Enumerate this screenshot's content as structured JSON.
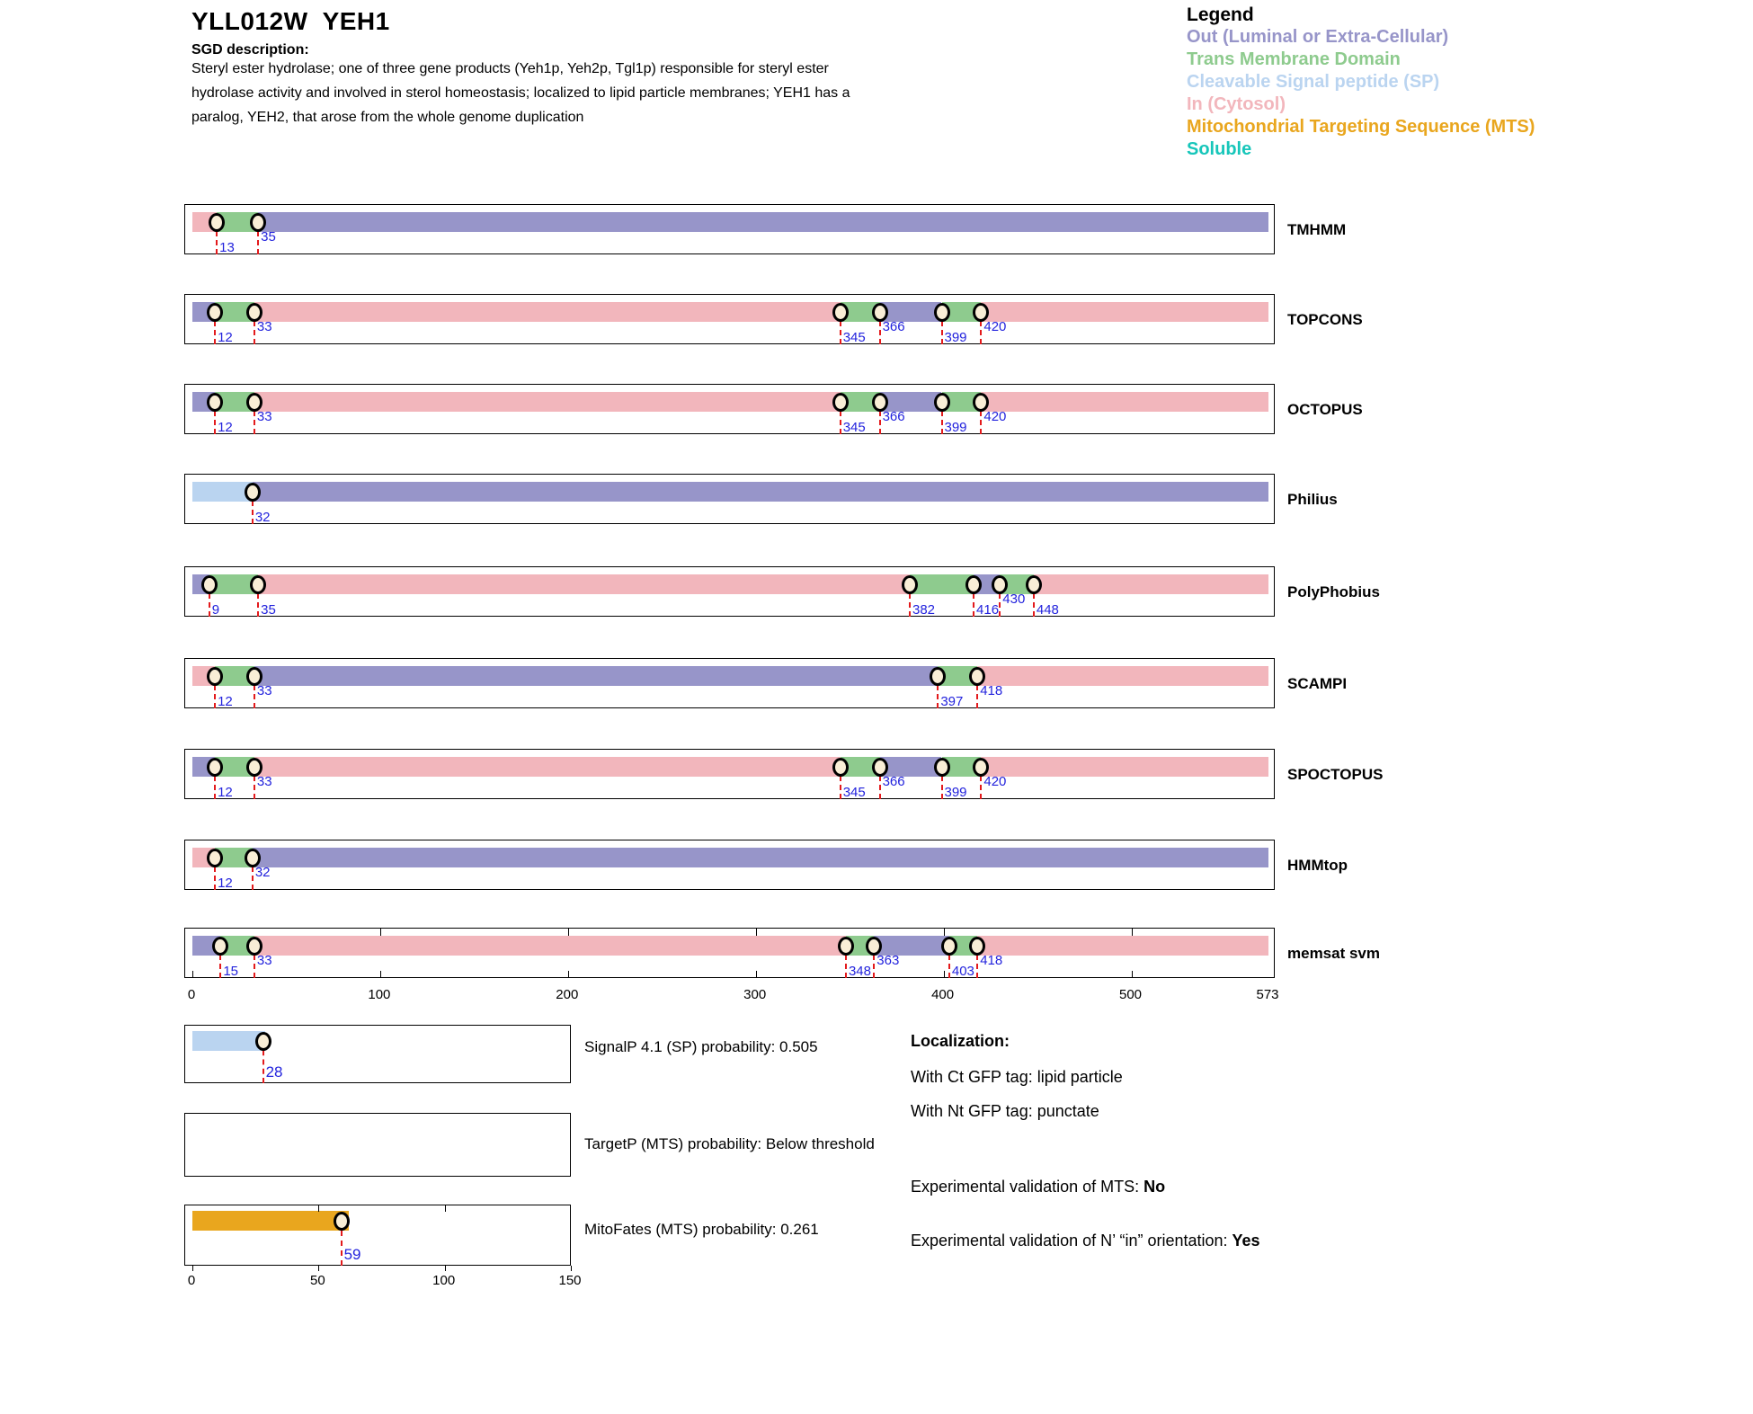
{
  "header": {
    "title": "YLL012W  YEH1",
    "sgd_label": "SGD description:",
    "description": "Steryl ester hydrolase; one of three gene products (Yeh1p, Yeh2p, Tgl1p) responsible for steryl ester hydrolase activity and involved in sterol homeostasis; localized to lipid particle membranes; YEH1 has a paralog, YEH2, that arose from the whole genome duplication"
  },
  "legend": {
    "title": "Legend",
    "items": [
      {
        "label": "Out (Luminal or Extra-Cellular)",
        "type": "out",
        "color": "#9795c9"
      },
      {
        "label": "Trans Membrane Domain",
        "type": "tm",
        "color": "#8ecb8e"
      },
      {
        "label": "Cleavable Signal peptide (SP)",
        "type": "sp",
        "color": "#bad4f0"
      },
      {
        "label": "In (Cytosol)",
        "type": "in",
        "color": "#f2b6bc"
      },
      {
        "label": "Mitochondrial Targeting Sequence (MTS)",
        "type": "mts",
        "color": "#e9a61e"
      },
      {
        "label": "Soluble",
        "type": "soluble",
        "color": "#17c6ba"
      }
    ]
  },
  "colors": {
    "out": "#9795c9",
    "tm": "#8ecb8e",
    "sp": "#bad4f0",
    "in": "#f2b6bc",
    "mts": "#e9a61e",
    "soluble": "#17c6ba",
    "marker_fill": "#f9eed6",
    "marker_line": "#e31a1c",
    "value_label": "#2323dd"
  },
  "chart_data": {
    "type": "bar",
    "subtype": "protein-topology-interval-tracks",
    "title": "Topology predictions for YLL012W YEH1",
    "protein_length": 573,
    "axis": {
      "ticks": [
        0,
        100,
        200,
        300,
        400,
        500,
        573
      ]
    },
    "tracks": [
      {
        "name": "TMHMM",
        "segments": [
          {
            "start": 0,
            "end": 13,
            "type": "in"
          },
          {
            "start": 13,
            "end": 35,
            "type": "tm"
          },
          {
            "start": 35,
            "end": 573,
            "type": "out"
          }
        ],
        "markers": [
          {
            "pos": 13,
            "row": "low"
          },
          {
            "pos": 35,
            "row": "high"
          }
        ],
        "ruler": false
      },
      {
        "name": "TOPCONS",
        "segments": [
          {
            "start": 0,
            "end": 12,
            "type": "out"
          },
          {
            "start": 12,
            "end": 33,
            "type": "tm"
          },
          {
            "start": 33,
            "end": 345,
            "type": "in"
          },
          {
            "start": 345,
            "end": 366,
            "type": "tm"
          },
          {
            "start": 366,
            "end": 399,
            "type": "out"
          },
          {
            "start": 399,
            "end": 420,
            "type": "tm"
          },
          {
            "start": 420,
            "end": 573,
            "type": "in"
          }
        ],
        "markers": [
          {
            "pos": 12,
            "row": "low"
          },
          {
            "pos": 33,
            "row": "high"
          },
          {
            "pos": 345,
            "row": "low"
          },
          {
            "pos": 366,
            "row": "high"
          },
          {
            "pos": 399,
            "row": "low"
          },
          {
            "pos": 420,
            "row": "high"
          }
        ],
        "ruler": false
      },
      {
        "name": "OCTOPUS",
        "segments": [
          {
            "start": 0,
            "end": 12,
            "type": "out"
          },
          {
            "start": 12,
            "end": 33,
            "type": "tm"
          },
          {
            "start": 33,
            "end": 345,
            "type": "in"
          },
          {
            "start": 345,
            "end": 366,
            "type": "tm"
          },
          {
            "start": 366,
            "end": 399,
            "type": "out"
          },
          {
            "start": 399,
            "end": 420,
            "type": "tm"
          },
          {
            "start": 420,
            "end": 573,
            "type": "in"
          }
        ],
        "markers": [
          {
            "pos": 12,
            "row": "low"
          },
          {
            "pos": 33,
            "row": "high"
          },
          {
            "pos": 345,
            "row": "low"
          },
          {
            "pos": 366,
            "row": "high"
          },
          {
            "pos": 399,
            "row": "low"
          },
          {
            "pos": 420,
            "row": "high"
          }
        ],
        "ruler": false
      },
      {
        "name": "Philius",
        "segments": [
          {
            "start": 0,
            "end": 32,
            "type": "sp"
          },
          {
            "start": 32,
            "end": 573,
            "type": "out"
          }
        ],
        "markers": [
          {
            "pos": 32,
            "row": "low"
          }
        ],
        "ruler": false
      },
      {
        "name": "PolyPhobius",
        "segments": [
          {
            "start": 0,
            "end": 9,
            "type": "out"
          },
          {
            "start": 9,
            "end": 35,
            "type": "tm"
          },
          {
            "start": 35,
            "end": 382,
            "type": "in"
          },
          {
            "start": 382,
            "end": 416,
            "type": "tm"
          },
          {
            "start": 416,
            "end": 430,
            "type": "out"
          },
          {
            "start": 430,
            "end": 448,
            "type": "tm"
          },
          {
            "start": 448,
            "end": 573,
            "type": "in"
          }
        ],
        "markers": [
          {
            "pos": 9,
            "row": "low"
          },
          {
            "pos": 35,
            "row": "low"
          },
          {
            "pos": 382,
            "row": "low"
          },
          {
            "pos": 416,
            "row": "low"
          },
          {
            "pos": 430,
            "row": "high"
          },
          {
            "pos": 448,
            "row": "low"
          }
        ],
        "ruler": false
      },
      {
        "name": "SCAMPI",
        "segments": [
          {
            "start": 0,
            "end": 12,
            "type": "in"
          },
          {
            "start": 12,
            "end": 33,
            "type": "tm"
          },
          {
            "start": 33,
            "end": 397,
            "type": "out"
          },
          {
            "start": 397,
            "end": 418,
            "type": "tm"
          },
          {
            "start": 418,
            "end": 573,
            "type": "in"
          }
        ],
        "markers": [
          {
            "pos": 12,
            "row": "low"
          },
          {
            "pos": 33,
            "row": "high"
          },
          {
            "pos": 397,
            "row": "low"
          },
          {
            "pos": 418,
            "row": "high"
          }
        ],
        "ruler": false
      },
      {
        "name": "SPOCTOPUS",
        "segments": [
          {
            "start": 0,
            "end": 12,
            "type": "out"
          },
          {
            "start": 12,
            "end": 33,
            "type": "tm"
          },
          {
            "start": 33,
            "end": 345,
            "type": "in"
          },
          {
            "start": 345,
            "end": 366,
            "type": "tm"
          },
          {
            "start": 366,
            "end": 399,
            "type": "out"
          },
          {
            "start": 399,
            "end": 420,
            "type": "tm"
          },
          {
            "start": 420,
            "end": 573,
            "type": "in"
          }
        ],
        "markers": [
          {
            "pos": 12,
            "row": "low"
          },
          {
            "pos": 33,
            "row": "high"
          },
          {
            "pos": 345,
            "row": "low"
          },
          {
            "pos": 366,
            "row": "high"
          },
          {
            "pos": 399,
            "row": "low"
          },
          {
            "pos": 420,
            "row": "high"
          }
        ],
        "ruler": false
      },
      {
        "name": "HMMtop",
        "segments": [
          {
            "start": 0,
            "end": 12,
            "type": "in"
          },
          {
            "start": 12,
            "end": 32,
            "type": "tm"
          },
          {
            "start": 32,
            "end": 573,
            "type": "out"
          }
        ],
        "markers": [
          {
            "pos": 12,
            "row": "low"
          },
          {
            "pos": 32,
            "row": "high"
          }
        ],
        "ruler": false
      },
      {
        "name": "memsat svm",
        "segments": [
          {
            "start": 0,
            "end": 15,
            "type": "out"
          },
          {
            "start": 15,
            "end": 33,
            "type": "tm"
          },
          {
            "start": 33,
            "end": 348,
            "type": "in"
          },
          {
            "start": 348,
            "end": 363,
            "type": "tm"
          },
          {
            "start": 363,
            "end": 403,
            "type": "out"
          },
          {
            "start": 403,
            "end": 418,
            "type": "tm"
          },
          {
            "start": 418,
            "end": 573,
            "type": "in"
          }
        ],
        "markers": [
          {
            "pos": 15,
            "row": "low"
          },
          {
            "pos": 33,
            "row": "high"
          },
          {
            "pos": 348,
            "row": "low"
          },
          {
            "pos": 363,
            "row": "high"
          },
          {
            "pos": 403,
            "row": "low"
          },
          {
            "pos": 418,
            "row": "high"
          }
        ],
        "ruler": true
      }
    ],
    "sub_panels": {
      "scale_max": 150,
      "axis_ticks": [
        0,
        50,
        100,
        150
      ],
      "panels": [
        {
          "name": "SignalP",
          "label": "SignalP 4.1 (SP) probability: 0.505",
          "bar": {
            "start": 0,
            "end": 29,
            "type": "sp"
          },
          "marker": {
            "pos": 28
          },
          "has_axis": false
        },
        {
          "name": "TargetP",
          "label": "TargetP (MTS) probability: Below threshold",
          "bar": null,
          "marker": null,
          "has_axis": false
        },
        {
          "name": "MitoFates",
          "label": "MitoFates (MTS) probability: 0.261",
          "bar": {
            "start": 0,
            "end": 62,
            "type": "mts"
          },
          "marker": {
            "pos": 59
          },
          "has_axis": true
        }
      ]
    }
  },
  "annotations": {
    "localization_title": "Localization:",
    "ct_gfp": "With Ct GFP tag: lipid particle",
    "nt_gfp": "With Nt GFP tag: punctate",
    "mts_prefix": "Experimental validation of MTS: ",
    "mts_value": "No",
    "orientation_prefix": "Experimental validation of N’ “in” orientation: ",
    "orientation_value": "Yes"
  }
}
